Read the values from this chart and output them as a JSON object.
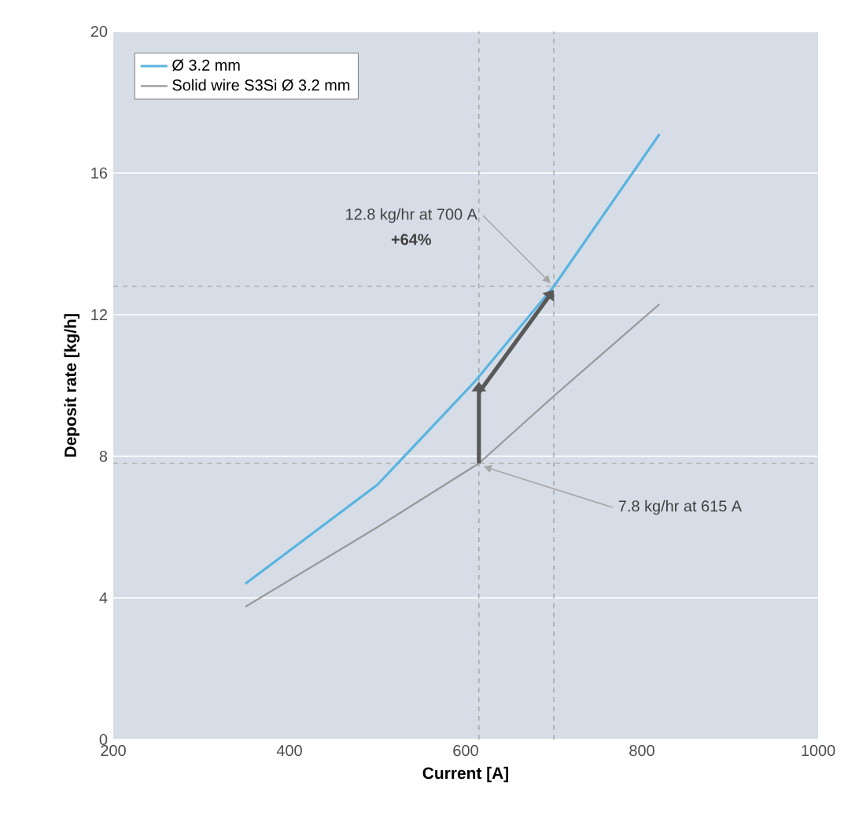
{
  "chart_data": {
    "type": "line",
    "xlabel": "Current [A]",
    "ylabel": "Deposit rate [kg/h]",
    "xlim": [
      200,
      1000
    ],
    "xticks": [
      200,
      400,
      600,
      800,
      1000
    ],
    "ylim": [
      0,
      20
    ],
    "yticks": [
      0,
      4,
      8,
      12,
      16,
      20
    ],
    "grid": "y",
    "legend": "top left",
    "marker": "none",
    "line_style": "solid",
    "series": [
      {
        "name": "Ø 3.2 mm",
        "color": "#5ab4e0",
        "x": [
          350,
          500,
          610,
          700,
          820
        ],
        "values": [
          4.4,
          7.2,
          10.1,
          12.8,
          17.1
        ]
      },
      {
        "name": "Solid wire S3Si Ø 3.2 mm",
        "color": "#999999",
        "x": [
          350,
          500,
          615,
          700,
          820
        ],
        "values": [
          3.75,
          6.0,
          7.8,
          9.7,
          12.3
        ]
      }
    ],
    "ref_lines": [
      {
        "axis": "x",
        "value": 615,
        "color": "#999999",
        "line_style": "dashed"
      },
      {
        "axis": "x",
        "value": 700,
        "color": "#999999",
        "line_style": "dashed"
      },
      {
        "axis": "y",
        "value": 7.8,
        "color": "#999999",
        "line_style": "dashed"
      },
      {
        "axis": "y",
        "value": 12.8,
        "color": "#999999",
        "line_style": "dashed"
      }
    ],
    "annotations": [
      {
        "text": "12.8 kg/hr at 700 A",
        "x": 700,
        "y": 12.8
      },
      "**+64%**",
      {
        "text": "7.8 kg/hr at 615 A",
        "x": 615,
        "y": 7.8
      }
    ]
  }
}
